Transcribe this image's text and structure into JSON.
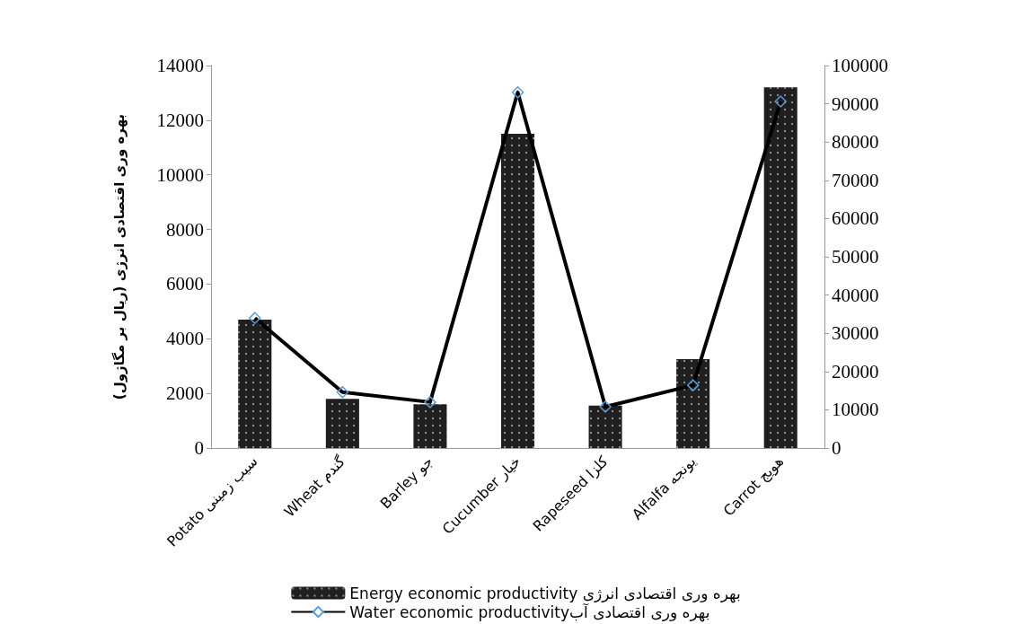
{
  "chart_data": {
    "type": "bar",
    "categories": [
      "Potato سیب زمینی",
      "Wheat گندم",
      "Barley جو",
      "Cucumber خیار",
      "Rapeseed کلزا",
      "Alfalfa یونجه",
      "Carrot هویج"
    ],
    "ylabel": "بهره وری اقتصادی انرژی (ریال بر مگاژول)",
    "ylim": [
      0,
      14000
    ],
    "yticks": [
      0,
      2000,
      4000,
      6000,
      8000,
      10000,
      12000,
      14000
    ],
    "y2lim": [
      0,
      100000
    ],
    "y2ticks": [
      0,
      10000,
      20000,
      30000,
      40000,
      50000,
      60000,
      70000,
      80000,
      90000,
      100000
    ],
    "series": [
      {
        "name": "Energy economic productivity بهره وری اقتصادی انرژی",
        "color": "#1f1f1f",
        "values": [
          4700,
          1800,
          1600,
          11500,
          1550,
          3250,
          13200
        ]
      },
      {
        "name": "Water economic productivityبهره وری اقتصادی آب",
        "type": "line",
        "axis": "y2",
        "color": "#000000",
        "marker": "diamond",
        "line_style": "solid",
        "values": [
          34000,
          14600,
          12000,
          93000,
          10800,
          16400,
          90600
        ]
      }
    ],
    "legend": "bottom",
    "grid": false
  }
}
